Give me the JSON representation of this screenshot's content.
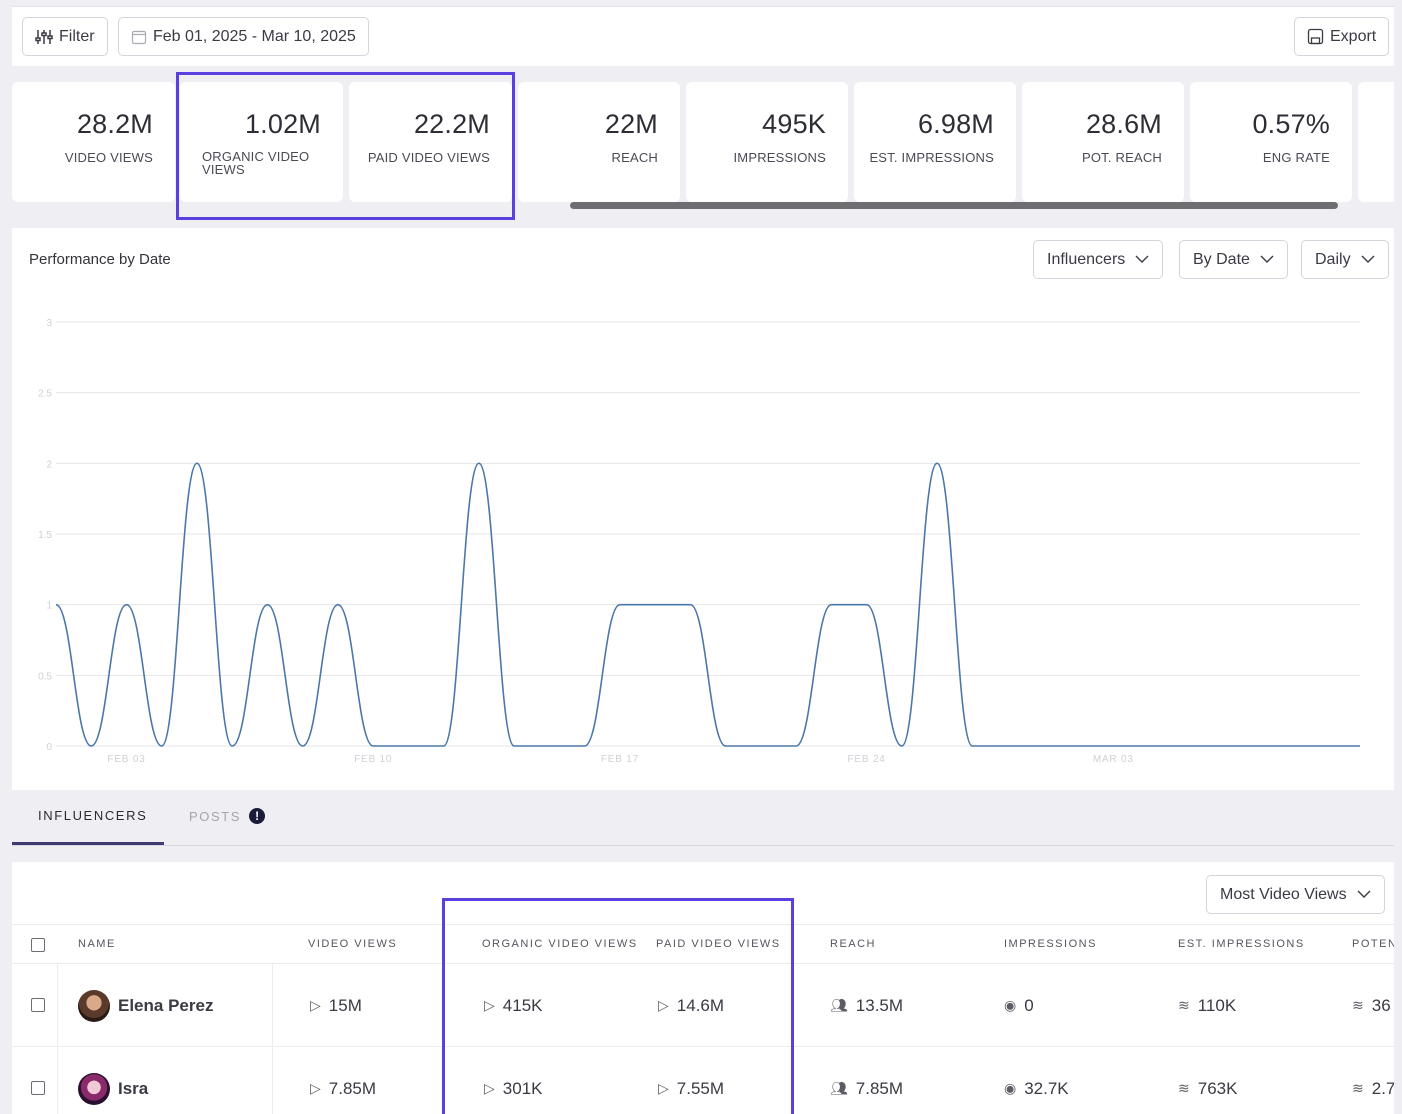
{
  "toolbar": {
    "filter_label": "Filter",
    "date_range": "Feb 01, 2025 - Mar 10, 2025",
    "export_label": "Export"
  },
  "metrics": [
    {
      "value": "28.2M",
      "label": "VIDEO VIEWS"
    },
    {
      "value": "1.02M",
      "label": "ORGANIC VIDEO VIEWS"
    },
    {
      "value": "22.2M",
      "label": "PAID VIDEO VIEWS"
    },
    {
      "value": "22M",
      "label": "REACH"
    },
    {
      "value": "495K",
      "label": "IMPRESSIONS"
    },
    {
      "value": "6.98M",
      "label": "EST. IMPRESSIONS"
    },
    {
      "value": "28.6M",
      "label": "POT. REACH"
    },
    {
      "value": "0.57%",
      "label": "ENG RATE"
    }
  ],
  "chart_panel": {
    "title": "Performance by Date",
    "dropdowns": [
      "Influencers",
      "By Date",
      "Daily"
    ]
  },
  "chart_data": {
    "type": "line",
    "title": "",
    "xlabel": "",
    "ylabel": "",
    "ylim": [
      0,
      3
    ],
    "yticks": [
      "0",
      "0.5",
      "1",
      "1.5",
      "2",
      "2.5",
      "3"
    ],
    "xtick_labels": [
      {
        "day": 3,
        "label": "FEB 03"
      },
      {
        "day": 10,
        "label": "FEB 10"
      },
      {
        "day": 17,
        "label": "FEB 17"
      },
      {
        "day": 24,
        "label": "FEB 24"
      },
      {
        "day": 31,
        "label": "MAR 03"
      }
    ],
    "grid": true,
    "color": "#4a78a8",
    "x": [
      "2025-02-01",
      "2025-02-02",
      "2025-02-03",
      "2025-02-04",
      "2025-02-05",
      "2025-02-06",
      "2025-02-07",
      "2025-02-08",
      "2025-02-09",
      "2025-02-10",
      "2025-02-11",
      "2025-02-12",
      "2025-02-13",
      "2025-02-14",
      "2025-02-15",
      "2025-02-16",
      "2025-02-17",
      "2025-02-18",
      "2025-02-19",
      "2025-02-20",
      "2025-02-21",
      "2025-02-22",
      "2025-02-23",
      "2025-02-24",
      "2025-02-25",
      "2025-02-26",
      "2025-02-27",
      "2025-02-28",
      "2025-03-01",
      "2025-03-02",
      "2025-03-03",
      "2025-03-04",
      "2025-03-05",
      "2025-03-06",
      "2025-03-07",
      "2025-03-08",
      "2025-03-09",
      "2025-03-10"
    ],
    "values": [
      1,
      0,
      1,
      0,
      2,
      0,
      1,
      0,
      1,
      0,
      0,
      0,
      2,
      0,
      0,
      0,
      1,
      1,
      1,
      0,
      0,
      0,
      1,
      1,
      0,
      2,
      0,
      0,
      0,
      0,
      0,
      0,
      0,
      0,
      0,
      0,
      0,
      0
    ]
  },
  "tabs": {
    "influencers": "INFLUENCERS",
    "posts": "POSTS",
    "alert": "!"
  },
  "table": {
    "sort_label": "Most Video Views",
    "headers": [
      "NAME",
      "VIDEO VIEWS",
      "ORGANIC VIDEO VIEWS",
      "PAID VIDEO VIEWS",
      "REACH",
      "IMPRESSIONS",
      "EST. IMPRESSIONS",
      "POTEN"
    ],
    "rows": [
      {
        "name": "Elena Perez",
        "video_views": "15M",
        "organic": "415K",
        "paid": "14.6M",
        "reach": "13.5M",
        "impressions": "0",
        "est_impressions": "110K",
        "potential": "36"
      },
      {
        "name": "Isra",
        "video_views": "7.85M",
        "organic": "301K",
        "paid": "7.55M",
        "reach": "7.85M",
        "impressions": "32.7K",
        "est_impressions": "763K",
        "potential": "2.7"
      }
    ]
  }
}
